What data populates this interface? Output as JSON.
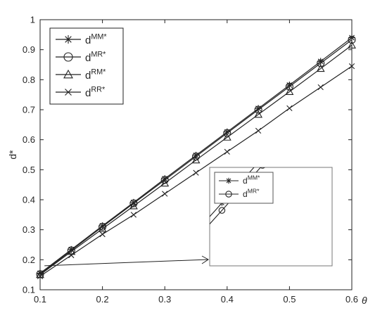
{
  "chart_data": {
    "type": "line",
    "xlabel": "θ",
    "ylabel": "d*",
    "xlim": [
      0.1,
      0.6
    ],
    "ylim": [
      0.1,
      1.0
    ],
    "x_ticks": [
      "0.1",
      "0.2",
      "0.3",
      "0.4",
      "0.5",
      "0.6"
    ],
    "y_ticks": [
      "0.1",
      "0.2",
      "0.3",
      "0.4",
      "0.5",
      "0.6",
      "0.7",
      "0.8",
      "0.9",
      "1"
    ],
    "grid": false,
    "legend_position": "top-left",
    "x": [
      0.1,
      0.15,
      0.2,
      0.25,
      0.3,
      0.35,
      0.4,
      0.45,
      0.5,
      0.55,
      0.6
    ],
    "series": [
      {
        "name": "MM*",
        "marker": "asterisk",
        "values": [
          0.155,
          0.234,
          0.313,
          0.391,
          0.47,
          0.548,
          0.626,
          0.704,
          0.782,
          0.861,
          0.94
        ]
      },
      {
        "name": "MR*",
        "marker": "circle",
        "values": [
          0.152,
          0.231,
          0.31,
          0.388,
          0.466,
          0.544,
          0.622,
          0.7,
          0.777,
          0.855,
          0.933
        ]
      },
      {
        "name": "RM*",
        "marker": "triangle",
        "values": [
          0.15,
          0.227,
          0.303,
          0.379,
          0.455,
          0.532,
          0.608,
          0.684,
          0.76,
          0.837,
          0.915
        ]
      },
      {
        "name": "RR*",
        "marker": "x",
        "values": [
          0.145,
          0.215,
          0.285,
          0.35,
          0.42,
          0.49,
          0.56,
          0.63,
          0.705,
          0.775,
          0.845
        ]
      }
    ],
    "legend_label_prefix": "d",
    "inset": {
      "series": [
        "MM*",
        "MR*"
      ],
      "legend_position": "top-left"
    }
  }
}
